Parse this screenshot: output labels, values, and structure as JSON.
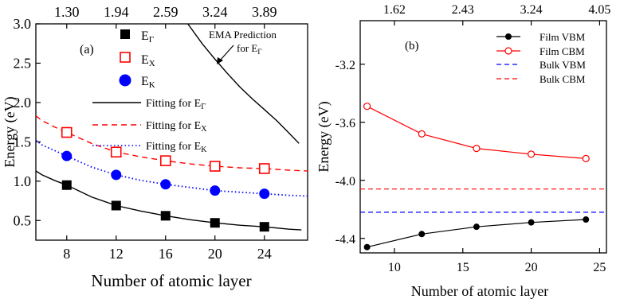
{
  "chart_data": [
    {
      "panel_label": "(a)",
      "type": "scatter",
      "xlabel": "Number of atomic layer",
      "ylabel": "Energy (eV)",
      "xlim": [
        5.5,
        27.5
      ],
      "ylim": [
        0.25,
        3.0
      ],
      "xticks": [
        8,
        12,
        16,
        20,
        24
      ],
      "yticks": [
        0.5,
        1.0,
        1.5,
        2.0,
        2.5,
        3.0
      ],
      "ytick_labels": [
        "0.5",
        "1.0",
        "1.5",
        "2.0",
        "2.5",
        "3.0"
      ],
      "top_axis": {
        "ticks": [
          8,
          12,
          16,
          20,
          24
        ],
        "labels": [
          "1.30",
          "1.94",
          "2.59",
          "3.24",
          "3.89"
        ]
      },
      "series": [
        {
          "name_base": "E",
          "name_sub": "Γ",
          "marker": "filled-square",
          "color": "#000000",
          "x": [
            8,
            12,
            16,
            20,
            24
          ],
          "y": [
            0.95,
            0.69,
            0.56,
            0.47,
            0.42
          ]
        },
        {
          "name_base": "E",
          "name_sub": "X",
          "marker": "open-square",
          "color": "#ff0000",
          "x": [
            8,
            12,
            16,
            20,
            24
          ],
          "y": [
            1.62,
            1.37,
            1.26,
            1.19,
            1.16
          ]
        },
        {
          "name_base": "E",
          "name_sub": "K",
          "marker": "filled-circle",
          "color": "#0000ff",
          "x": [
            8,
            12,
            16,
            20,
            24
          ],
          "y": [
            1.32,
            1.08,
            0.96,
            0.88,
            0.84
          ]
        }
      ],
      "fits": [
        {
          "name_base": "Fitting for E",
          "name_sub": "Γ",
          "style": "solid",
          "color": "#000000",
          "x": [
            5.5,
            6,
            7,
            8,
            10,
            12,
            14,
            16,
            18,
            20,
            22,
            24,
            26,
            27
          ],
          "y": [
            1.13,
            1.08,
            1.01,
            0.95,
            0.8,
            0.69,
            0.62,
            0.56,
            0.51,
            0.47,
            0.44,
            0.42,
            0.39,
            0.38
          ]
        },
        {
          "name_base": "Fitting for E",
          "name_sub": "X",
          "style": "dashed",
          "color": "#ff0000",
          "x": [
            5.5,
            6,
            7,
            8,
            10,
            12,
            14,
            16,
            18,
            20,
            22,
            24,
            26,
            27.5
          ],
          "y": [
            1.83,
            1.77,
            1.69,
            1.62,
            1.48,
            1.37,
            1.31,
            1.26,
            1.22,
            1.19,
            1.17,
            1.16,
            1.14,
            1.13
          ]
        },
        {
          "name_base": "Fitting for E",
          "name_sub": "K",
          "style": "dotted",
          "color": "#0000ff",
          "x": [
            5.5,
            6,
            7,
            8,
            10,
            12,
            14,
            16,
            18,
            20,
            22,
            24,
            26,
            27.5
          ],
          "y": [
            1.52,
            1.46,
            1.39,
            1.32,
            1.18,
            1.08,
            1.01,
            0.96,
            0.92,
            0.88,
            0.86,
            0.84,
            0.82,
            0.81
          ]
        },
        {
          "name_base": "",
          "name_sub": "",
          "style": "solid",
          "color": "#000000",
          "x": [
            17.8,
            19,
            20,
            21,
            22,
            23,
            24,
            25,
            26,
            26.8
          ],
          "y": [
            3.0,
            2.74,
            2.55,
            2.37,
            2.2,
            2.05,
            1.91,
            1.77,
            1.61,
            1.48
          ]
        }
      ],
      "annotation": {
        "line1": "EMA Prediction",
        "line2_base": "for E",
        "line2_sub": "Γ"
      }
    },
    {
      "panel_label": "(b)",
      "type": "line",
      "xlabel": "Number of atomic layer",
      "ylabel": "Energy (eV)",
      "xlim": [
        7.5,
        25.5
      ],
      "ylim": [
        -4.5,
        -2.9
      ],
      "xticks": [
        10,
        15,
        20,
        25
      ],
      "yticks": [
        -4.4,
        -4.0,
        -3.6,
        -3.2
      ],
      "ytick_labels": [
        "-4.4",
        "-4.0",
        "-3.6",
        "-3.2"
      ],
      "top_axis": {
        "ticks": [
          10,
          15,
          20,
          25
        ],
        "labels": [
          "1.62",
          "2.43",
          "3.24",
          "4.05"
        ]
      },
      "series": [
        {
          "name": "Film VBM",
          "style": "solid",
          "marker": "filled-circle",
          "color": "#000000",
          "x": [
            8,
            12,
            16,
            20,
            24
          ],
          "y": [
            -4.46,
            -4.37,
            -4.32,
            -4.29,
            -4.27
          ]
        },
        {
          "name": "Film CBM",
          "style": "solid",
          "marker": "open-circle",
          "color": "#ff0000",
          "x": [
            8,
            12,
            16,
            20,
            24
          ],
          "y": [
            -3.49,
            -3.68,
            -3.78,
            -3.82,
            -3.85
          ]
        },
        {
          "name": "Bulk VBM",
          "style": "dashed",
          "marker": "none",
          "color": "#0000ff",
          "x": [
            7.5,
            25.5
          ],
          "y": [
            -4.22,
            -4.22
          ]
        },
        {
          "name": "Bulk CBM",
          "style": "dashed",
          "marker": "none",
          "color": "#ff0000",
          "x": [
            7.5,
            25.5
          ],
          "y": [
            -4.06,
            -4.06
          ]
        }
      ]
    }
  ]
}
